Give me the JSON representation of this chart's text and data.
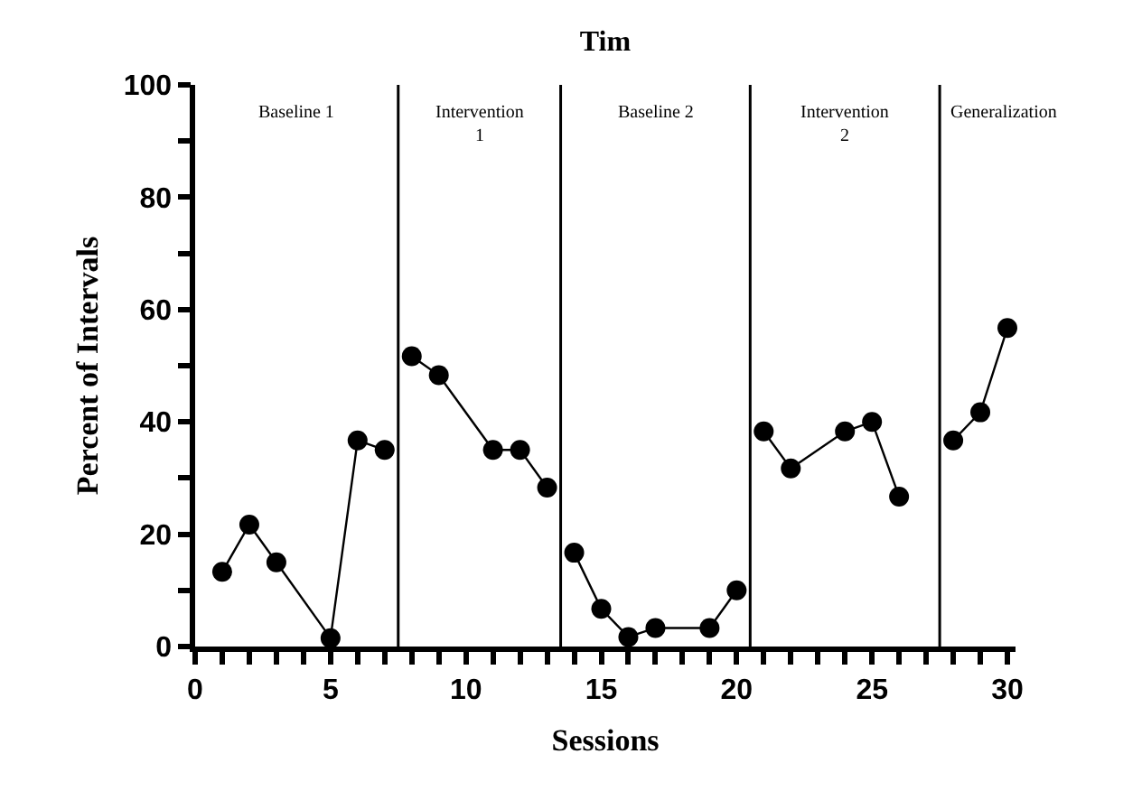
{
  "chart_data": {
    "type": "line",
    "title": "Tim",
    "xlabel": "Sessions",
    "ylabel": "Percent of Intervals",
    "series": [
      {
        "color": "#000000",
        "x": [
          1,
          2,
          3,
          5,
          6,
          7
        ],
        "values": [
          13.3,
          21.7,
          15,
          1.5,
          36.7,
          35
        ]
      },
      {
        "color": "#000000",
        "x": [
          8,
          9,
          11,
          12,
          13
        ],
        "values": [
          51.7,
          48.3,
          35,
          35,
          28.3
        ]
      },
      {
        "color": "#000000",
        "x": [
          14,
          15,
          16,
          17,
          19,
          20
        ],
        "values": [
          16.7,
          6.7,
          1.7,
          3.3,
          3.3,
          10
        ]
      },
      {
        "color": "#000000",
        "x": [
          21,
          22,
          24,
          25,
          26
        ],
        "values": [
          38.3,
          31.7,
          38.3,
          40,
          26.7
        ]
      },
      {
        "color": "#000000",
        "x": [
          28,
          29,
          30
        ],
        "values": [
          36.7,
          41.7,
          56.7
        ]
      }
    ],
    "xlim": [
      0,
      30.3
    ],
    "ylim": [
      0,
      100
    ],
    "xticks": [
      0,
      {
        "value": 1,
        "label": null
      },
      {
        "value": 2,
        "label": null
      },
      {
        "value": 3,
        "label": null
      },
      {
        "value": 4,
        "label": null
      },
      5,
      {
        "value": 6,
        "label": null
      },
      {
        "value": 7,
        "label": null
      },
      {
        "value": 8,
        "label": null
      },
      {
        "value": 9,
        "label": null
      },
      10,
      {
        "value": 11,
        "label": null
      },
      {
        "value": 12,
        "label": null
      },
      {
        "value": 13,
        "label": null
      },
      {
        "value": 14,
        "label": null
      },
      15,
      {
        "value": 16,
        "label": null
      },
      {
        "value": 17,
        "label": null
      },
      {
        "value": 18,
        "label": null
      },
      {
        "value": 19,
        "label": null
      },
      20,
      {
        "value": 21,
        "label": null
      },
      {
        "value": 22,
        "label": null
      },
      {
        "value": 23,
        "label": null
      },
      {
        "value": 24,
        "label": null
      },
      25,
      {
        "value": 26,
        "label": null
      },
      {
        "value": 27,
        "label": null
      },
      {
        "value": 28,
        "label": null
      },
      {
        "value": 29,
        "label": null
      },
      30
    ],
    "yticks": [
      0,
      {
        "value": 10,
        "label": null
      },
      20,
      {
        "value": 30,
        "label": null
      },
      40,
      {
        "value": 50,
        "label": null
      },
      60,
      {
        "value": 70,
        "label": null
      },
      80,
      {
        "value": 90,
        "label": null
      },
      100
    ],
    "ref_lines": [
      {
        "axis": "x",
        "value": 7.5,
        "color": "#000000"
      },
      {
        "axis": "x",
        "value": 13.5,
        "color": "#000000"
      },
      {
        "axis": "x",
        "value": 20.5,
        "color": "#000000"
      },
      {
        "axis": "x",
        "value": 27.5,
        "color": "#000000"
      }
    ],
    "annotations": [
      "Baseline 1",
      "Intervention\n1",
      "Baseline 2",
      "Intervention\n2",
      "Generalization"
    ],
    "marker": "circle",
    "line_style": "solid"
  }
}
